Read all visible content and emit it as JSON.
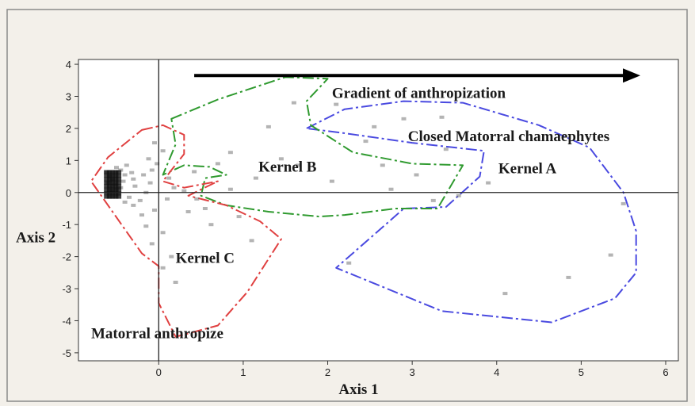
{
  "chart_data": {
    "type": "scatter",
    "title": "",
    "xlabel": "Axis 1",
    "ylabel": "Axis 2",
    "xlim": [
      -0.95,
      6.15
    ],
    "ylim": [
      -5.25,
      4.15
    ],
    "xticks": [
      0,
      1,
      2,
      3,
      4,
      5,
      6
    ],
    "yticks": [
      4,
      3,
      2,
      1,
      0,
      -1,
      -2,
      -3,
      -4,
      -5
    ],
    "grid": false,
    "reference_lines": {
      "x": 0,
      "y": 0
    },
    "colors": {
      "frame_bg": "#f3f0ea",
      "plot_bg": "#ffffff",
      "kernel_a": "#4a4ae0",
      "kernel_b": "#2f9a2f",
      "kernel_c": "#e04040",
      "arrow": "#000000",
      "points": "#777777"
    },
    "annotations": [
      {
        "text": "Gradient of anthropization",
        "x": 2.05,
        "y": 2.95
      },
      {
        "text": "Closed Matorral chamaephytes",
        "x": 2.95,
        "y": 1.6
      },
      {
        "text": "Kernel A",
        "x": 4.02,
        "y": 0.6
      },
      {
        "text": "Kernel B",
        "x": 1.18,
        "y": 0.65
      },
      {
        "text": "Kernel C",
        "x": 0.2,
        "y": -2.2
      },
      {
        "text": "Matorral anthropize",
        "x": -0.8,
        "y": -4.55
      }
    ],
    "gradient_arrow": {
      "from": [
        0.42,
        3.65
      ],
      "to": [
        5.7,
        3.65
      ]
    },
    "kernels": [
      {
        "label": "Kernel A",
        "color": "#4a4ae0",
        "polygon": [
          [
            1.75,
            2.0
          ],
          [
            2.2,
            2.6
          ],
          [
            2.9,
            2.85
          ],
          [
            3.6,
            2.8
          ],
          [
            4.5,
            2.1
          ],
          [
            5.1,
            1.4
          ],
          [
            5.5,
            0.0
          ],
          [
            5.65,
            -1.2
          ],
          [
            5.65,
            -2.5
          ],
          [
            5.4,
            -3.3
          ],
          [
            4.65,
            -4.05
          ],
          [
            3.35,
            -3.7
          ],
          [
            2.1,
            -2.35
          ],
          [
            2.9,
            -0.5
          ],
          [
            3.4,
            -0.45
          ],
          [
            3.8,
            0.5
          ],
          [
            3.85,
            1.3
          ],
          [
            3.0,
            1.55
          ],
          [
            2.2,
            1.85
          ]
        ]
      },
      {
        "label": "Kernel B",
        "color": "#2f9a2f",
        "polygon": [
          [
            0.15,
            2.3
          ],
          [
            0.7,
            2.9
          ],
          [
            1.5,
            3.6
          ],
          [
            2.0,
            3.55
          ],
          [
            1.75,
            2.85
          ],
          [
            1.8,
            2.1
          ],
          [
            2.3,
            1.25
          ],
          [
            3.0,
            0.9
          ],
          [
            3.6,
            0.85
          ],
          [
            3.3,
            -0.5
          ],
          [
            2.8,
            -0.5
          ],
          [
            2.2,
            -0.7
          ],
          [
            1.9,
            -0.75
          ],
          [
            1.3,
            -0.6
          ],
          [
            0.8,
            -0.4
          ],
          [
            0.5,
            -0.1
          ],
          [
            0.55,
            0.45
          ],
          [
            0.8,
            0.55
          ],
          [
            0.6,
            0.8
          ],
          [
            0.3,
            0.85
          ],
          [
            0.05,
            0.55
          ],
          [
            0.2,
            1.5
          ]
        ]
      },
      {
        "label": "Kernel C",
        "color": "#e04040",
        "polygon": [
          [
            -0.2,
            1.95
          ],
          [
            0.05,
            2.1
          ],
          [
            0.3,
            1.8
          ],
          [
            0.3,
            1.2
          ],
          [
            0.15,
            0.7
          ],
          [
            0.05,
            0.35
          ],
          [
            0.3,
            0.15
          ],
          [
            0.7,
            0.35
          ],
          [
            0.35,
            -0.1
          ],
          [
            0.8,
            -0.4
          ],
          [
            1.2,
            -0.9
          ],
          [
            1.45,
            -1.45
          ],
          [
            1.05,
            -3.1
          ],
          [
            0.7,
            -4.15
          ],
          [
            0.2,
            -4.5
          ],
          [
            0.0,
            -3.45
          ],
          [
            0.0,
            -2.3
          ],
          [
            -0.2,
            -1.9
          ],
          [
            -0.8,
            0.35
          ],
          [
            -0.6,
            1.1
          ]
        ]
      }
    ],
    "points": [
      [
        -0.62,
        0.62
      ],
      [
        -0.58,
        0.5
      ],
      [
        -0.55,
        0.4
      ],
      [
        -0.6,
        0.3
      ],
      [
        -0.52,
        0.25
      ],
      [
        -0.5,
        0.1
      ],
      [
        -0.56,
        0.05
      ],
      [
        -0.48,
        -0.05
      ],
      [
        -0.45,
        0.15
      ],
      [
        -0.42,
        0.35
      ],
      [
        -0.4,
        0.55
      ],
      [
        -0.45,
        0.7
      ],
      [
        -0.5,
        0.78
      ],
      [
        -0.38,
        0.85
      ],
      [
        -0.32,
        0.62
      ],
      [
        -0.3,
        0.42
      ],
      [
        -0.28,
        0.2
      ],
      [
        -0.35,
        -0.15
      ],
      [
        -0.4,
        -0.3
      ],
      [
        -0.3,
        -0.4
      ],
      [
        -0.22,
        -0.25
      ],
      [
        -0.15,
        0.0
      ],
      [
        -0.1,
        0.3
      ],
      [
        -0.18,
        0.55
      ],
      [
        -0.08,
        0.7
      ],
      [
        -0.02,
        0.9
      ],
      [
        -0.12,
        1.05
      ],
      [
        0.05,
        1.3
      ],
      [
        -0.05,
        1.55
      ],
      [
        0.12,
        0.45
      ],
      [
        0.18,
        0.15
      ],
      [
        0.1,
        -0.2
      ],
      [
        -0.05,
        -0.55
      ],
      [
        -0.2,
        -0.7
      ],
      [
        -0.15,
        -1.05
      ],
      [
        0.05,
        -1.25
      ],
      [
        -0.08,
        -1.6
      ],
      [
        0.15,
        -2.0
      ],
      [
        0.05,
        -2.35
      ],
      [
        0.2,
        -2.8
      ],
      [
        0.35,
        -0.6
      ],
      [
        0.45,
        -0.2
      ],
      [
        0.3,
        0.05
      ],
      [
        0.42,
        0.65
      ],
      [
        0.55,
        -0.5
      ],
      [
        0.62,
        -1.0
      ],
      [
        0.7,
        0.9
      ],
      [
        0.85,
        1.25
      ],
      [
        0.85,
        0.1
      ],
      [
        0.95,
        -0.75
      ],
      [
        1.1,
        -1.5
      ],
      [
        1.15,
        0.45
      ],
      [
        1.3,
        2.05
      ],
      [
        1.45,
        1.05
      ],
      [
        1.6,
        2.8
      ],
      [
        1.65,
        0.85
      ],
      [
        2.05,
        0.35
      ],
      [
        2.1,
        2.75
      ],
      [
        2.45,
        1.6
      ],
      [
        2.55,
        2.05
      ],
      [
        2.65,
        0.85
      ],
      [
        2.75,
        0.1
      ],
      [
        2.9,
        2.3
      ],
      [
        3.05,
        0.55
      ],
      [
        3.25,
        -0.25
      ],
      [
        3.55,
        -0.1
      ],
      [
        3.9,
        0.3
      ],
      [
        3.4,
        1.35
      ],
      [
        2.25,
        -2.2
      ],
      [
        4.85,
        -2.65
      ],
      [
        5.35,
        -1.95
      ],
      [
        5.5,
        -0.35
      ],
      [
        4.1,
        -3.15
      ],
      [
        3.35,
        2.35
      ]
    ]
  }
}
